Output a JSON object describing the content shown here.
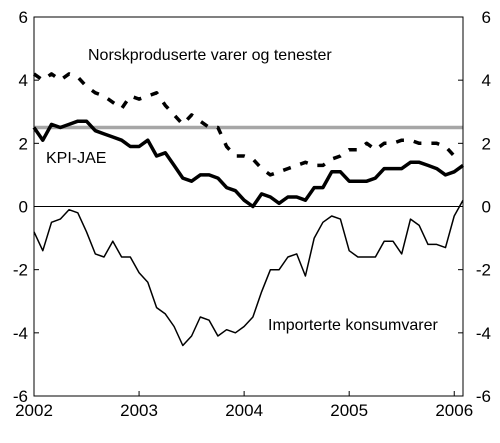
{
  "chart_data": {
    "type": "line",
    "title": "",
    "xlabel": "",
    "ylabel": "",
    "ylim": [
      -6,
      6
    ],
    "xlim": [
      "2002-01",
      "2006-02"
    ],
    "y_ticks": [
      "-6",
      "-4",
      "-2",
      "0",
      "2",
      "4",
      "6"
    ],
    "x_ticks": [
      {
        "label": "2002",
        "x": "2002-01"
      },
      {
        "label": "2003",
        "x": "2003-01"
      },
      {
        "label": "2004",
        "x": "2004-01"
      },
      {
        "label": "2005",
        "x": "2005-01"
      },
      {
        "label": "2006",
        "x": "2006-01"
      }
    ],
    "y_axis_right": true,
    "grid": false,
    "legend": "none",
    "x": [
      "2002-01",
      "2002-02",
      "2002-03",
      "2002-04",
      "2002-05",
      "2002-06",
      "2002-07",
      "2002-08",
      "2002-09",
      "2002-10",
      "2002-11",
      "2002-12",
      "2003-01",
      "2003-02",
      "2003-03",
      "2003-04",
      "2003-05",
      "2003-06",
      "2003-07",
      "2003-08",
      "2003-09",
      "2003-10",
      "2003-11",
      "2003-12",
      "2004-01",
      "2004-02",
      "2004-03",
      "2004-04",
      "2004-05",
      "2004-06",
      "2004-07",
      "2004-08",
      "2004-09",
      "2004-10",
      "2004-11",
      "2004-12",
      "2005-01",
      "2005-02",
      "2005-03",
      "2005-04",
      "2005-05",
      "2005-06",
      "2005-07",
      "2005-08",
      "2005-09",
      "2005-10",
      "2005-11",
      "2005-12",
      "2006-01",
      "2006-02"
    ],
    "series": [
      {
        "name": "Norskproduserte varer og tenester",
        "style": "dashed",
        "color": "#000000",
        "values": [
          4.2,
          4.0,
          4.2,
          4.0,
          4.2,
          4.1,
          3.8,
          3.6,
          3.5,
          3.3,
          3.1,
          3.5,
          3.4,
          3.5,
          3.6,
          3.2,
          2.9,
          2.6,
          2.9,
          2.7,
          2.5,
          2.5,
          1.9,
          1.6,
          1.6,
          1.5,
          1.2,
          1.0,
          1.1,
          1.2,
          1.3,
          1.4,
          1.3,
          1.3,
          1.5,
          1.6,
          1.8,
          1.8,
          2.0,
          1.8,
          2.0,
          2.0,
          2.1,
          2.1,
          2.0,
          2.0,
          2.0,
          1.9,
          1.6,
          1.6
        ],
        "label_text": "Norskproduserte varer og tenester"
      },
      {
        "name": "KPI-JAE",
        "style": "thick",
        "color": "#000000",
        "values": [
          2.5,
          2.1,
          2.6,
          2.5,
          2.6,
          2.7,
          2.7,
          2.4,
          2.3,
          2.2,
          2.1,
          1.9,
          1.9,
          2.1,
          1.6,
          1.7,
          1.3,
          0.9,
          0.8,
          1.0,
          1.0,
          0.9,
          0.6,
          0.5,
          0.2,
          0.0,
          0.4,
          0.3,
          0.1,
          0.3,
          0.3,
          0.2,
          0.6,
          0.6,
          1.1,
          1.1,
          0.8,
          0.8,
          0.8,
          0.9,
          1.2,
          1.2,
          1.2,
          1.4,
          1.4,
          1.3,
          1.2,
          1.0,
          1.1,
          1.3
        ],
        "label_text": "KPI-JAE"
      },
      {
        "name": "Importerte konsumvarer",
        "style": "thin",
        "color": "#000000",
        "values": [
          -0.8,
          -1.4,
          -0.5,
          -0.4,
          -0.1,
          -0.2,
          -0.8,
          -1.5,
          -1.6,
          -1.1,
          -1.6,
          -1.6,
          -2.1,
          -2.4,
          -3.2,
          -3.4,
          -3.8,
          -4.4,
          -4.1,
          -3.5,
          -3.6,
          -4.1,
          -3.9,
          -4.0,
          -3.8,
          -3.5,
          -2.7,
          -2.0,
          -2.0,
          -1.6,
          -1.5,
          -2.2,
          -1.0,
          -0.5,
          -0.3,
          -0.4,
          -1.4,
          -1.6,
          -1.6,
          -1.6,
          -1.1,
          -1.1,
          -1.5,
          -0.4,
          -0.6,
          -1.2,
          -1.2,
          -1.3,
          -0.3,
          0.2
        ],
        "label_text": "Importerte konsumvarer"
      }
    ],
    "reference_lines": [
      {
        "y": 2.5,
        "color": "#a6a6a6"
      },
      {
        "y": 0,
        "color": "#000000"
      }
    ]
  }
}
